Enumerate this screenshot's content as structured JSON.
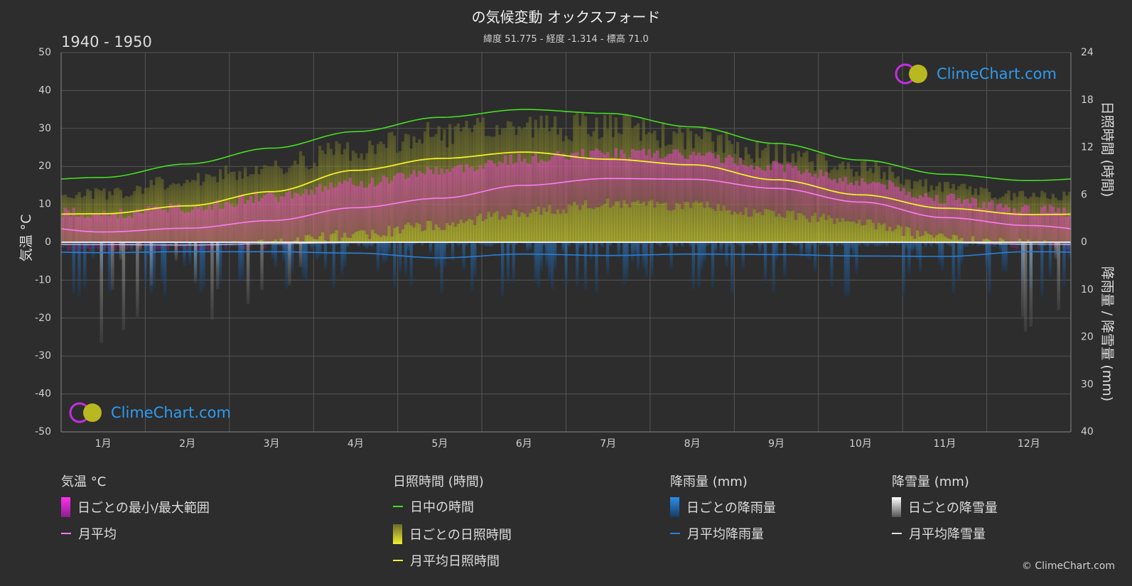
{
  "title": "の気候変動 オックスフォード",
  "subtitle": "緯度 51.775 - 経度 -1.314 - 標高 71.0",
  "period": "1940 - 1950",
  "brand": "ClimeChart.com",
  "copyright": "© ClimeChart.com",
  "colors": {
    "background": "#2d2d2d",
    "daylight": "#44dd22",
    "sunshine_avg": "#f0f028",
    "sunshine_bar": "#9b9b34",
    "temp_range": "#e040c8",
    "temp_avg": "#ff7bf0",
    "rain": "#2a7fd8",
    "snow": "#b0b0b0"
  },
  "chart_data": {
    "type": "line",
    "x_categories": [
      "1月",
      "2月",
      "3月",
      "4月",
      "5月",
      "6月",
      "7月",
      "8月",
      "9月",
      "10月",
      "11月",
      "12月"
    ],
    "left_axis": {
      "label": "気温 °C",
      "ticks": [
        "50",
        "40",
        "30",
        "20",
        "10",
        "0",
        "-10",
        "-20",
        "-30",
        "-40",
        "-50"
      ],
      "range": [
        -50,
        50
      ]
    },
    "right_axis_top": {
      "label": "日照時間 (時間)",
      "ticks": [
        "24",
        "18",
        "12",
        "6",
        "0"
      ],
      "range": [
        0,
        24
      ]
    },
    "right_axis_bottom": {
      "label": "降雨量 / 降雪量 (mm)",
      "ticks": [
        "10",
        "20",
        "30",
        "40"
      ],
      "range": [
        0,
        40
      ]
    },
    "grid": true,
    "series": [
      {
        "name": "日中の時間",
        "axis": "sunshine_hours",
        "values": [
          8.2,
          9.9,
          11.9,
          14.0,
          15.8,
          16.8,
          16.3,
          14.6,
          12.5,
          10.4,
          8.6,
          7.8
        ]
      },
      {
        "name": "月平均日照時間",
        "axis": "sunshine_hours",
        "values": [
          3.6,
          4.6,
          6.4,
          9.1,
          10.6,
          11.4,
          10.5,
          9.8,
          7.9,
          6.0,
          4.3,
          3.5
        ]
      },
      {
        "name": "月平均",
        "axis": "temperature_c",
        "values": [
          2.7,
          3.7,
          5.7,
          9.1,
          11.6,
          15.0,
          16.8,
          16.6,
          14.2,
          10.6,
          6.5,
          4.4
        ]
      },
      {
        "name": "月平均降雨量",
        "axis": "precipitation_mm",
        "values": [
          2.2,
          2.0,
          2.0,
          2.3,
          3.3,
          2.5,
          2.8,
          2.5,
          2.6,
          2.9,
          3.0,
          2.0
        ]
      },
      {
        "name": "月平均降雪量",
        "axis": "precipitation_mm",
        "values": [
          0.5,
          0.6,
          0.3,
          0.1,
          0.0,
          0.0,
          0.0,
          0.0,
          0.0,
          0.0,
          0.1,
          0.4
        ]
      }
    ],
    "daily_temp_range": {
      "name": "日ごとの最小/最大範囲",
      "monthly_min": [
        -0.5,
        0.0,
        1.0,
        3.5,
        6.0,
        9.5,
        11.5,
        11.0,
        9.0,
        6.5,
        2.5,
        1.0
      ],
      "monthly_max": [
        6.0,
        7.5,
        10.5,
        14.0,
        17.5,
        20.5,
        22.0,
        21.5,
        18.5,
        14.5,
        10.0,
        7.0
      ]
    },
    "daily_sunshine_max": [
      6.3,
      8.0,
      10.0,
      12.0,
      14.0,
      15.0,
      15.0,
      13.5,
      11.5,
      9.5,
      7.0,
      6.0
    ]
  },
  "legend": {
    "temperature": {
      "title": "気温 °C",
      "range": "日ごとの最小/最大範囲",
      "avg": "月平均"
    },
    "sunshine": {
      "title": "日照時間 (時間)",
      "daylight": "日中の時間",
      "daily": "日ごとの日照時間",
      "avg": "月平均日照時間"
    },
    "rain": {
      "title": "降雨量 (mm)",
      "daily": "日ごとの降雨量",
      "avg": "月平均降雨量"
    },
    "snow": {
      "title": "降雪量 (mm)",
      "daily": "日ごとの降雪量",
      "avg": "月平均降雪量"
    }
  }
}
